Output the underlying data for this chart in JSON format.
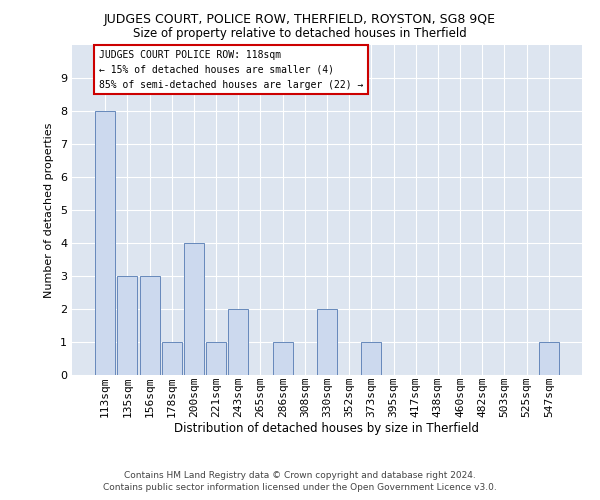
{
  "title1": "JUDGES COURT, POLICE ROW, THERFIELD, ROYSTON, SG8 9QE",
  "title2": "Size of property relative to detached houses in Therfield",
  "xlabel": "Distribution of detached houses by size in Therfield",
  "ylabel": "Number of detached properties",
  "categories": [
    "113sqm",
    "135sqm",
    "156sqm",
    "178sqm",
    "200sqm",
    "221sqm",
    "243sqm",
    "265sqm",
    "286sqm",
    "308sqm",
    "330sqm",
    "352sqm",
    "373sqm",
    "395sqm",
    "417sqm",
    "438sqm",
    "460sqm",
    "482sqm",
    "503sqm",
    "525sqm",
    "547sqm"
  ],
  "values": [
    8,
    3,
    3,
    1,
    4,
    1,
    2,
    0,
    1,
    0,
    2,
    0,
    1,
    0,
    0,
    0,
    0,
    0,
    0,
    0,
    1
  ],
  "bar_color": "#ccd9ee",
  "bar_edge_color": "#6688bb",
  "annotation_box_color": "#ffffff",
  "annotation_border_color": "#cc0000",
  "annotation_text_line1": "JUDGES COURT POLICE ROW: 118sqm",
  "annotation_text_line2": "← 15% of detached houses are smaller (4)",
  "annotation_text_line3": "85% of semi-detached houses are larger (22) →",
  "footer_line1": "Contains HM Land Registry data © Crown copyright and database right 2024.",
  "footer_line2": "Contains public sector information licensed under the Open Government Licence v3.0.",
  "ylim": [
    0,
    10
  ],
  "yticks": [
    0,
    1,
    2,
    3,
    4,
    5,
    6,
    7,
    8,
    9
  ],
  "plot_bg_color": "#dde5f0",
  "title1_fontsize": 9,
  "title2_fontsize": 8.5,
  "grid_color": "#ffffff"
}
